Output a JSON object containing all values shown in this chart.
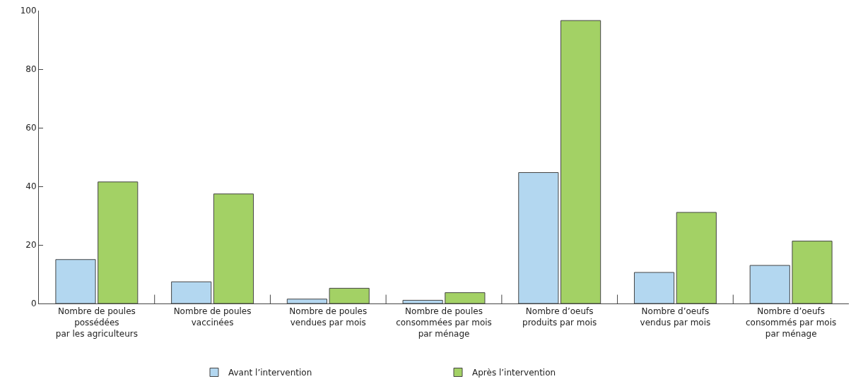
{
  "chart_data": {
    "type": "bar",
    "categories": [
      "Nombre de poules\npossédées\npar les agriculteurs",
      "Nombre de poules\nvaccinées",
      "Nombre de poules\nvendues par mois",
      "Nombre de poules\nconsommées par mois\npar ménage",
      "Nombre d’oeufs\nproduits par mois",
      "Nombre d’oeufs\nvendus par mois",
      "Nombre d’oeufs\nconsommés par mois\npar ménage"
    ],
    "series": [
      {
        "name": "Avant l’intervention",
        "color": "#b3d7f0",
        "values": [
          15,
          7.4,
          1.5,
          1.1,
          44.7,
          10.6,
          13
        ]
      },
      {
        "name": "Après l’intervention",
        "color": "#a3d165",
        "values": [
          41.5,
          37.4,
          5.2,
          3.7,
          96.6,
          31.1,
          21.3
        ]
      }
    ],
    "ylim": [
      0,
      100
    ],
    "yticks": [
      0,
      20,
      40,
      60,
      80,
      100
    ],
    "grid": false,
    "legend": "bottom"
  }
}
